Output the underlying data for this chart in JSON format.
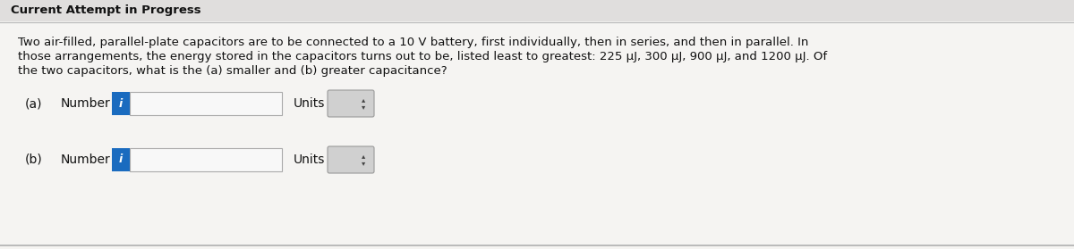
{
  "title": "Current Attempt in Progress",
  "body_line1": "Two air-filled, parallel-plate capacitors are to be connected to a 10 V battery, first individually, then in series, and then in parallel. In",
  "body_line2": "those arrangements, the energy stored in the capacitors turns out to be, listed least to greatest: 225 μJ, 300 μJ, 900 μJ, and 1200 μJ. Of",
  "body_line3": "the two capacitors, what is the (a) smaller and (b) greater capacitance?",
  "label_a": "(a)",
  "label_b": "(b)",
  "number_label": "Number",
  "units_label": "Units",
  "bg_color": "#e8e8e8",
  "panel_color": "#f5f4f2",
  "blue_color": "#1a6bbf",
  "input_box_color": "#f8f8f8",
  "units_box_color": "#d0d0d0",
  "title_fontsize": 9.5,
  "body_fontsize": 9.5,
  "label_fontsize": 10
}
